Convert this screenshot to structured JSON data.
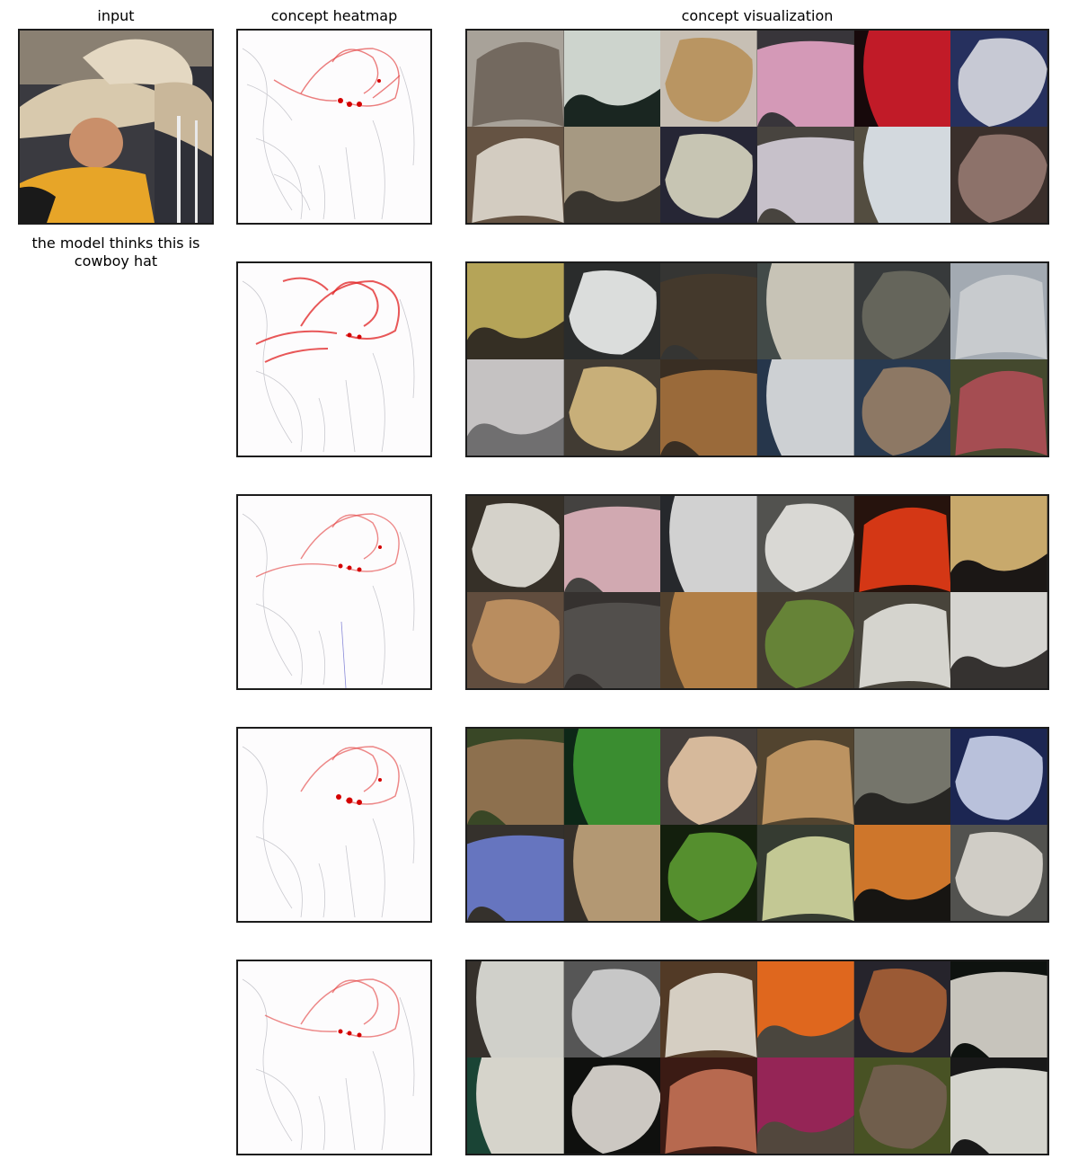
{
  "headers": {
    "input": "input",
    "heatmap": "concept heatmap",
    "visualization": "concept visualization"
  },
  "caption": "the model thinks this is cowboy hat",
  "concepts": [
    {
      "tiles": [
        {
          "bg": "#b7b0a6",
          "fg": "#7d7268"
        },
        {
          "bg": "#1d2a24",
          "fg": "#dfe6df"
        },
        {
          "bg": "#d8d0c4",
          "fg": "#c9a26b"
        },
        {
          "bg": "#3d3a3f",
          "fg": "#e7a7c7"
        },
        {
          "bg": "#1a0a0c",
          "fg": "#d21e2c"
        },
        {
          "bg": "#2a3566",
          "fg": "#d8dbe6"
        },
        {
          "bg": "#6e5b49",
          "fg": "#e5ded2"
        },
        {
          "bg": "#3e3a33",
          "fg": "#b5a68e"
        },
        {
          "bg": "#2a2a3a",
          "fg": "#d8d6c3"
        },
        {
          "bg": "#4f4a45",
          "fg": "#d8d2dc"
        },
        {
          "bg": "#5b5446",
          "fg": "#e5ecf1"
        },
        {
          "bg": "#3f332f",
          "fg": "#9a7c74"
        }
      ]
    },
    {
      "tiles": [
        {
          "bg": "#3a3428",
          "fg": "#c5b260"
        },
        {
          "bg": "#2e3030",
          "fg": "#eef0ef"
        },
        {
          "bg": "#3a3a38",
          "fg": "#4a3e30"
        },
        {
          "bg": "#48514f",
          "fg": "#d8d4c6"
        },
        {
          "bg": "#3c3f40",
          "fg": "#6e6e63"
        },
        {
          "bg": "#b1b9c2",
          "fg": "#d9dde0"
        },
        {
          "bg": "#7a797a",
          "fg": "#d6d3d3"
        },
        {
          "bg": "#474038",
          "fg": "#d9be84"
        },
        {
          "bg": "#3e3226",
          "fg": "#a8743f"
        },
        {
          "bg": "#2a3b52",
          "fg": "#dfe2e5"
        },
        {
          "bg": "#2d3f57",
          "fg": "#9a836d"
        },
        {
          "bg": "#4a5032",
          "fg": "#b3545a"
        }
      ]
    },
    {
      "tiles": [
        {
          "bg": "#3b352c",
          "fg": "#e8e4dc"
        },
        {
          "bg": "#4a4846",
          "fg": "#e3b8c0"
        },
        {
          "bg": "#2a2c30",
          "fg": "#e3e3e3"
        },
        {
          "bg": "#5a5a56",
          "fg": "#ecebe6"
        },
        {
          "bg": "#2a150f",
          "fg": "#e63c17"
        },
        {
          "bg": "#1e1a17",
          "fg": "#d9b876"
        },
        {
          "bg": "#6a5444",
          "fg": "#c99968"
        },
        {
          "bg": "#3a3634",
          "fg": "#5a5653"
        },
        {
          "bg": "#5a4732",
          "fg": "#c28a4c"
        },
        {
          "bg": "#4a4236",
          "fg": "#6f8f3c"
        },
        {
          "bg": "#4f4a40",
          "fg": "#e8e6e0"
        },
        {
          "bg": "#3a3735",
          "fg": "#e8e6e2"
        }
      ]
    },
    {
      "tiles": [
        {
          "bg": "#3e4e2a",
          "fg": "#9a7a55"
        },
        {
          "bg": "#0f2b19",
          "fg": "#3f9a35"
        },
        {
          "bg": "#4a4440",
          "fg": "#e9c9a9"
        },
        {
          "bg": "#5a4a33",
          "fg": "#cca06a"
        },
        {
          "bg": "#2b2a26",
          "fg": "#7f7f75"
        },
        {
          "bg": "#1f2a5a",
          "fg": "#c9d2ee"
        },
        {
          "bg": "#3a3630",
          "fg": "#6f7fd0"
        },
        {
          "bg": "#3b352d",
          "fg": "#c3a57d"
        },
        {
          "bg": "#15220f",
          "fg": "#5d9c32"
        },
        {
          "bg": "#3a4036",
          "fg": "#d4daa1"
        },
        {
          "bg": "#1a1714",
          "fg": "#e0802f"
        },
        {
          "bg": "#5a5a56",
          "fg": "#e2dfd7"
        }
      ]
    },
    {
      "tiles": [
        {
          "bg": "#3b3630",
          "fg": "#e2e2dc"
        },
        {
          "bg": "#5e5e5e",
          "fg": "#d8d8d8"
        },
        {
          "bg": "#5a3f2a",
          "fg": "#e8e0d3"
        },
        {
          "bg": "#514c44",
          "fg": "#f27021"
        },
        {
          "bg": "#2a2830",
          "fg": "#a9623a"
        },
        {
          "bg": "#101411",
          "fg": "#d8d5cc"
        },
        {
          "bg": "#1d4a3a",
          "fg": "#e9e6dd"
        },
        {
          "bg": "#111210",
          "fg": "#dedad3"
        },
        {
          "bg": "#401e16",
          "fg": "#c77256"
        },
        {
          "bg": "#5a4e43",
          "fg": "#a2295e"
        },
        {
          "bg": "#4f5a28",
          "fg": "#7a6653"
        },
        {
          "bg": "#1c1c1c",
          "fg": "#e6e6df"
        }
      ]
    }
  ]
}
